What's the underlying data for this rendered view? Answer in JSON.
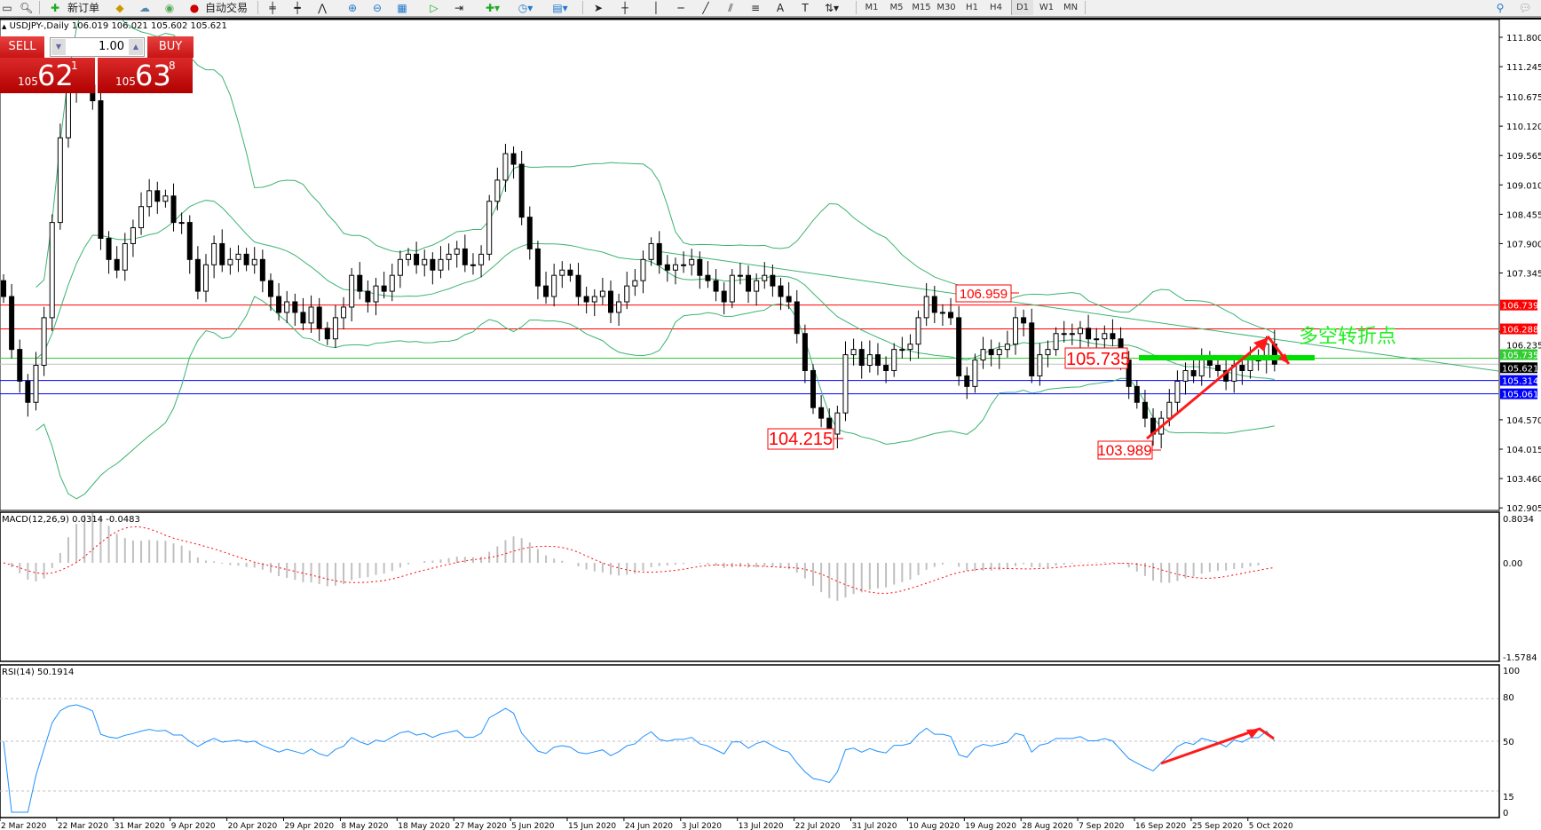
{
  "toolbar": {
    "new_order": "新订单",
    "auto_trading": "自动交易",
    "icons": [
      "new-chart-icon",
      "zoom-icon",
      "new-order-icon",
      "market-watch-icon",
      "data-window-icon",
      "signals-icon",
      "auto-trading-icon",
      "bar-chart-icon",
      "candlestick-icon",
      "line-chart-icon",
      "zoom-in-icon",
      "zoom-out-icon",
      "tile-icon",
      "autoscroll-icon",
      "chart-shift-icon",
      "indicators-icon",
      "periods-icon",
      "templates-icon",
      "cursor-icon",
      "crosshair-icon",
      "vertical-line-icon",
      "horizontal-line-icon",
      "trendline-icon",
      "equidistant-channel-icon",
      "fibonacci-icon",
      "text-icon",
      "label-icon",
      "arrows-icon",
      "search-icon",
      "chat-icon"
    ],
    "timeframes": [
      "M1",
      "M5",
      "M15",
      "M30",
      "H1",
      "H4",
      "D1",
      "W1",
      "MN"
    ],
    "active_timeframe": "D1"
  },
  "chart_header": {
    "symbol": "USDJPY-,Daily",
    "ohlc": "106.019 106.021 105.602 105.621"
  },
  "trade_panel": {
    "sell_label": "SELL",
    "buy_label": "BUY",
    "lot": "1.00",
    "sell_price": {
      "small": "105",
      "big": "62",
      "sup": "1"
    },
    "buy_price": {
      "small": "105",
      "big": "63",
      "sup": "8"
    }
  },
  "chart_data": {
    "type": "candlestick",
    "price_ticks": [
      "111.800",
      "111.245",
      "110.675",
      "110.120",
      "109.565",
      "109.010",
      "108.455",
      "107.900",
      "107.345",
      "106.235",
      "104.570",
      "104.015",
      "103.460",
      "102.905"
    ],
    "ylim": [
      102.905,
      111.8
    ],
    "date_labels": [
      "2 Mar 2020",
      "22 Mar 2020",
      "31 Mar 2020",
      "9 Apr 2020",
      "20 Apr 2020",
      "29 Apr 2020",
      "8 May 2020",
      "18 May 2020",
      "27 May 2020",
      "5 Jun 2020",
      "15 Jun 2020",
      "24 Jun 2020",
      "3 Jul 2020",
      "13 Jul 2020",
      "22 Jul 2020",
      "31 Jul 2020",
      "10 Aug 2020",
      "19 Aug 2020",
      "28 Aug 2020",
      "7 Sep 2020",
      "16 Sep 2020",
      "25 Sep 2020",
      "5 Oct 2020"
    ],
    "close": [
      106.9,
      105.9,
      105.3,
      104.9,
      105.6,
      106.5,
      108.3,
      109.9,
      110.8,
      111.1,
      110.9,
      110.6,
      108.0,
      107.6,
      107.4,
      107.9,
      108.2,
      108.6,
      108.9,
      108.7,
      108.8,
      108.3,
      108.3,
      107.6,
      107.0,
      107.5,
      107.9,
      107.5,
      107.6,
      107.7,
      107.5,
      107.6,
      107.2,
      106.9,
      106.6,
      106.8,
      106.6,
      106.4,
      106.7,
      106.3,
      106.1,
      106.5,
      106.7,
      107.3,
      107.0,
      106.8,
      107.1,
      107.0,
      107.3,
      107.6,
      107.7,
      107.5,
      107.6,
      107.4,
      107.6,
      107.7,
      107.8,
      107.5,
      107.5,
      107.7,
      108.7,
      109.1,
      109.6,
      109.4,
      108.4,
      107.8,
      107.1,
      106.9,
      107.3,
      107.4,
      107.3,
      106.9,
      106.8,
      106.9,
      107.0,
      106.6,
      106.8,
      107.1,
      107.2,
      107.6,
      107.9,
      107.5,
      107.4,
      107.5,
      107.5,
      107.6,
      107.3,
      107.2,
      107.0,
      106.8,
      107.3,
      107.3,
      107.0,
      107.2,
      107.3,
      107.1,
      106.9,
      106.8,
      106.2,
      105.5,
      104.8,
      104.6,
      104.3,
      104.7,
      105.8,
      105.9,
      105.6,
      105.8,
      105.6,
      105.5,
      105.9,
      105.9,
      106.0,
      106.5,
      106.9,
      106.6,
      106.6,
      106.5,
      105.4,
      105.2,
      105.7,
      105.9,
      105.8,
      105.9,
      106.0,
      106.5,
      106.4,
      105.4,
      105.8,
      105.9,
      106.2,
      106.2,
      106.2,
      106.3,
      106.1,
      106.1,
      106.2,
      106.1,
      105.7,
      105.2,
      104.9,
      104.6,
      104.3,
      104.6,
      104.9,
      105.3,
      105.5,
      105.4,
      105.7,
      105.6,
      105.5,
      105.3,
      105.6,
      105.5,
      105.7,
      105.7,
      106.0,
      105.621
    ],
    "levels": [
      {
        "price": "106.739",
        "color": "#ff0000"
      },
      {
        "price": "106.288",
        "color": "#ff0000"
      },
      {
        "price": "105.735",
        "color": "#32cd32"
      },
      {
        "price": "105.621",
        "color": "#000000"
      },
      {
        "price": "105.314",
        "color": "#0000ff"
      },
      {
        "price": "105.061",
        "color": "#0000ff"
      }
    ],
    "annotations": {
      "high_label": "106.959",
      "low_label_1": "104.215",
      "mid_label": "105.735",
      "low_label_2": "103.989",
      "note": "多空转折点"
    },
    "indicators": {
      "bollinger_color": "#3cb371",
      "macd": {
        "title": "MACD(12,26,9) 0.0314 -0.0483",
        "ticks": [
          "0.8034",
          "0.00",
          "-1.5784"
        ]
      },
      "rsi": {
        "title": "RSI(14) 50.1914",
        "ticks": [
          "100",
          "80",
          "50",
          "15",
          "0"
        ]
      }
    }
  }
}
